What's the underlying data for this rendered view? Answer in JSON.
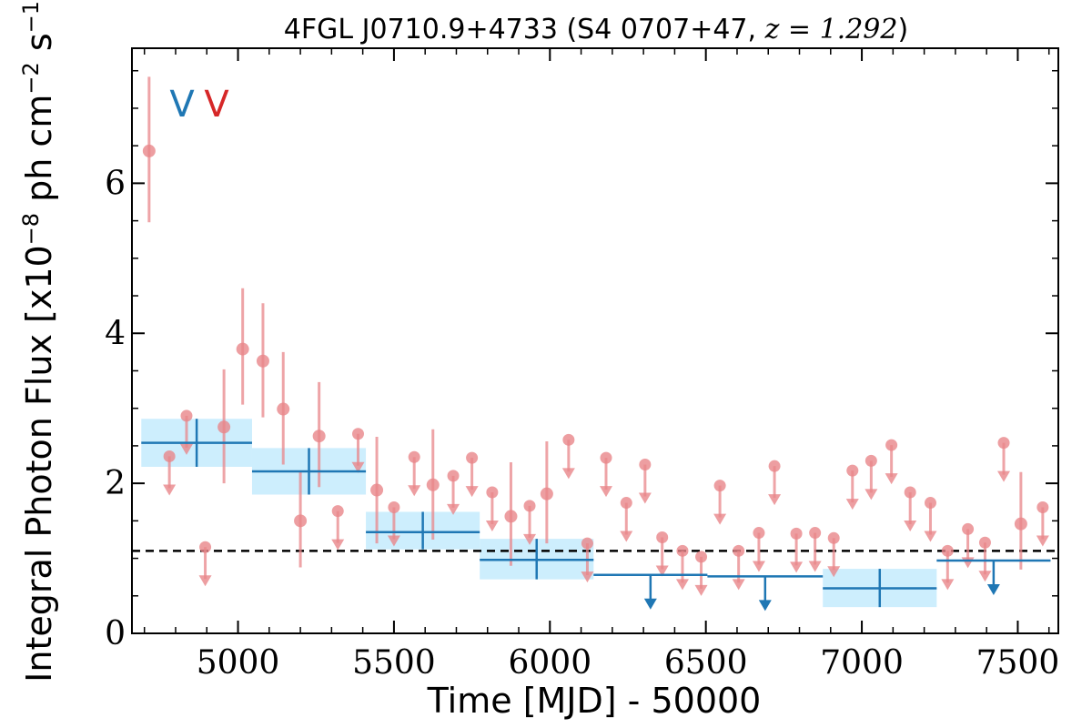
{
  "chart_data": {
    "type": "scatter",
    "title_main": "4FGL J0710.9+4733 (S4 0707+47, ",
    "title_math": "z = 1.292",
    "title_close": ")",
    "xlabel": "Time [MJD] - 50000",
    "ylabel": "Integral Photon Flux [x10",
    "ylabel_exp": "−8",
    "ylabel_units": " ph cm",
    "ylabel_exp2": "−2",
    "ylabel_tail": " s",
    "ylabel_exp3": "−1",
    "ylabel_close": "]",
    "xlim": [
      4660,
      7630
    ],
    "ylim": [
      0,
      7.8
    ],
    "xticks": [
      5000,
      5500,
      6000,
      6500,
      7000,
      7500
    ],
    "xtick_labels": [
      "5000",
      "5500",
      "6000",
      "6500",
      "7000",
      "7500"
    ],
    "yticks": [
      0,
      2,
      4,
      6
    ],
    "ytick_labels": [
      "0",
      "2",
      "4",
      "6"
    ],
    "reference_line": 1.1,
    "variability_flags": [
      {
        "text": "V",
        "color": "#1f77b4"
      },
      {
        "text": "V",
        "color": "#d62728"
      }
    ],
    "series": [
      {
        "style": "fine-bin points",
        "color": "#e8868a",
        "detections": [
          {
            "x": 4715,
            "y": 6.43,
            "lo": 5.48,
            "hi": 7.42
          },
          {
            "x": 4955,
            "y": 2.75,
            "lo": 2.0,
            "hi": 3.52
          },
          {
            "x": 5015,
            "y": 3.79,
            "lo": 3.05,
            "hi": 4.6
          },
          {
            "x": 5080,
            "y": 3.63,
            "lo": 2.88,
            "hi": 4.4
          },
          {
            "x": 5145,
            "y": 2.99,
            "lo": 2.25,
            "hi": 3.75
          },
          {
            "x": 5200,
            "y": 1.5,
            "lo": 0.88,
            "hi": 2.15
          },
          {
            "x": 5260,
            "y": 2.63,
            "lo": 1.95,
            "hi": 3.35
          },
          {
            "x": 5445,
            "y": 1.91,
            "lo": 1.2,
            "hi": 2.62
          },
          {
            "x": 5625,
            "y": 1.98,
            "lo": 1.25,
            "hi": 2.72
          },
          {
            "x": 5875,
            "y": 1.56,
            "lo": 0.9,
            "hi": 2.28
          },
          {
            "x": 5990,
            "y": 1.86,
            "lo": 1.2,
            "hi": 2.56
          },
          {
            "x": 7510,
            "y": 1.46,
            "lo": 0.85,
            "hi": 2.15
          }
        ],
        "upper_limits": [
          {
            "x": 4780,
            "y": 2.36
          },
          {
            "x": 4835,
            "y": 2.9
          },
          {
            "x": 4895,
            "y": 1.15
          },
          {
            "x": 5320,
            "y": 1.63
          },
          {
            "x": 5385,
            "y": 2.66
          },
          {
            "x": 5500,
            "y": 1.68
          },
          {
            "x": 5565,
            "y": 2.35
          },
          {
            "x": 5690,
            "y": 2.1
          },
          {
            "x": 5750,
            "y": 2.34
          },
          {
            "x": 5815,
            "y": 1.88
          },
          {
            "x": 5935,
            "y": 1.7
          },
          {
            "x": 6060,
            "y": 2.58
          },
          {
            "x": 6120,
            "y": 1.2
          },
          {
            "x": 6180,
            "y": 2.34
          },
          {
            "x": 6245,
            "y": 1.74
          },
          {
            "x": 6305,
            "y": 2.25
          },
          {
            "x": 6360,
            "y": 1.28
          },
          {
            "x": 6425,
            "y": 1.1
          },
          {
            "x": 6485,
            "y": 1.02
          },
          {
            "x": 6545,
            "y": 1.97
          },
          {
            "x": 6605,
            "y": 1.1
          },
          {
            "x": 6670,
            "y": 1.34
          },
          {
            "x": 6720,
            "y": 2.23
          },
          {
            "x": 6790,
            "y": 1.33
          },
          {
            "x": 6850,
            "y": 1.34
          },
          {
            "x": 6910,
            "y": 1.27
          },
          {
            "x": 6970,
            "y": 2.17
          },
          {
            "x": 7030,
            "y": 2.3
          },
          {
            "x": 7095,
            "y": 2.51
          },
          {
            "x": 7155,
            "y": 1.88
          },
          {
            "x": 7220,
            "y": 1.74
          },
          {
            "x": 7275,
            "y": 1.1
          },
          {
            "x": 7340,
            "y": 1.39
          },
          {
            "x": 7395,
            "y": 1.21
          },
          {
            "x": 7455,
            "y": 2.54
          },
          {
            "x": 7580,
            "y": 1.68
          }
        ]
      },
      {
        "style": "coarse-bin points",
        "color": "#1f77b4",
        "band_color": "#cdeefd",
        "detections": [
          {
            "x0": 4690,
            "x1": 5045,
            "y": 2.54,
            "lo": 2.22,
            "hi": 2.86
          },
          {
            "x0": 5045,
            "x1": 5410,
            "y": 2.16,
            "lo": 1.85,
            "hi": 2.47
          },
          {
            "x0": 5410,
            "x1": 5775,
            "y": 1.35,
            "lo": 1.12,
            "hi": 1.62
          },
          {
            "x0": 5775,
            "x1": 6140,
            "y": 0.98,
            "lo": 0.72,
            "hi": 1.26
          },
          {
            "x0": 6875,
            "x1": 7240,
            "y": 0.6,
            "lo": 0.35,
            "hi": 0.86
          }
        ],
        "upper_limits": [
          {
            "x0": 6140,
            "x1": 6505,
            "y": 0.78
          },
          {
            "x0": 6505,
            "x1": 6875,
            "y": 0.76
          },
          {
            "x0": 7240,
            "x1": 7605,
            "y": 0.97
          }
        ]
      }
    ]
  }
}
